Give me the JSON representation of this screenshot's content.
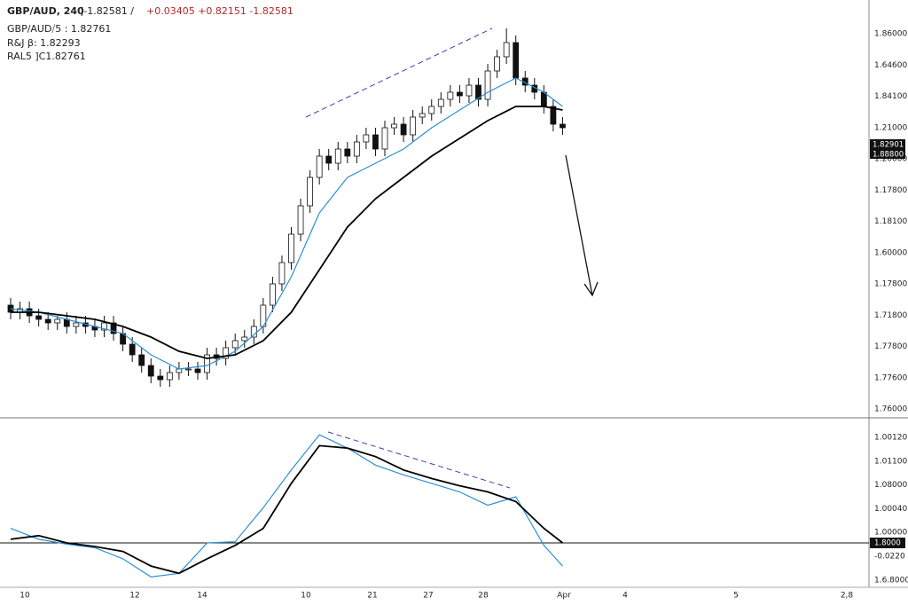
{
  "chart_data": {
    "type": "candlestick",
    "header": {
      "symbol": "GBP/AUD, 240",
      "quote": "]-1.82581 /",
      "changes": "+0.03405 +0.82151 -1.82581"
    },
    "legend_lines": [
      "GBP/AUD⧸5 : 1.82761",
      "R&J β: 1.82293",
      "RAL5 ]C1.82761"
    ],
    "up_color": "#ffffff",
    "down_color": "#111111",
    "ylim": [
      1.7525,
      1.87
    ],
    "y_axis_labels": [
      "1.86000",
      "1.64600",
      "1.84100",
      "1.21000",
      "1.20000",
      "1.17800",
      "1.18100",
      "1.60000",
      "1.17800",
      "1.71800",
      "1.77800",
      "1.77600",
      "1.76000"
    ],
    "price_badges": [
      "1.82901",
      "1.88800"
    ],
    "x_labels": [
      "10",
      "12",
      "14",
      "10",
      "21",
      "27",
      "28",
      "Apr",
      "4",
      "5",
      "2,8"
    ],
    "ohlc": [
      [
        1.784,
        1.786,
        1.78,
        1.782
      ],
      [
        1.782,
        1.785,
        1.78,
        1.783
      ],
      [
        1.783,
        1.785,
        1.779,
        1.781
      ],
      [
        1.781,
        1.783,
        1.778,
        1.78
      ],
      [
        1.78,
        1.782,
        1.777,
        1.779
      ],
      [
        1.779,
        1.781,
        1.777,
        1.78
      ],
      [
        1.78,
        1.782,
        1.776,
        1.778
      ],
      [
        1.778,
        1.781,
        1.776,
        1.779
      ],
      [
        1.779,
        1.781,
        1.776,
        1.778
      ],
      [
        1.778,
        1.78,
        1.775,
        1.777
      ],
      [
        1.777,
        1.781,
        1.775,
        1.779
      ],
      [
        1.779,
        1.781,
        1.774,
        1.776
      ],
      [
        1.776,
        1.778,
        1.771,
        1.773
      ],
      [
        1.773,
        1.775,
        1.768,
        1.77
      ],
      [
        1.77,
        1.772,
        1.765,
        1.767
      ],
      [
        1.767,
        1.769,
        1.762,
        1.764
      ],
      [
        1.764,
        1.766,
        1.761,
        1.763
      ],
      [
        1.763,
        1.767,
        1.761,
        1.765
      ],
      [
        1.765,
        1.768,
        1.763,
        1.766
      ],
      [
        1.766,
        1.768,
        1.764,
        1.766
      ],
      [
        1.766,
        1.768,
        1.763,
        1.765
      ],
      [
        1.765,
        1.772,
        1.763,
        1.77
      ],
      [
        1.77,
        1.772,
        1.767,
        1.769
      ],
      [
        1.769,
        1.774,
        1.767,
        1.772
      ],
      [
        1.772,
        1.776,
        1.77,
        1.774
      ],
      [
        1.774,
        1.777,
        1.772,
        1.775
      ],
      [
        1.775,
        1.78,
        1.773,
        1.778
      ],
      [
        1.778,
        1.786,
        1.776,
        1.784
      ],
      [
        1.784,
        1.792,
        1.782,
        1.79
      ],
      [
        1.79,
        1.798,
        1.788,
        1.796
      ],
      [
        1.796,
        1.806,
        1.794,
        1.804
      ],
      [
        1.804,
        1.814,
        1.802,
        1.812
      ],
      [
        1.812,
        1.822,
        1.81,
        1.82
      ],
      [
        1.82,
        1.828,
        1.818,
        1.826
      ],
      [
        1.826,
        1.828,
        1.822,
        1.824
      ],
      [
        1.824,
        1.83,
        1.822,
        1.828
      ],
      [
        1.828,
        1.83,
        1.824,
        1.826
      ],
      [
        1.826,
        1.832,
        1.824,
        1.83
      ],
      [
        1.83,
        1.834,
        1.828,
        1.832
      ],
      [
        1.832,
        1.834,
        1.826,
        1.828
      ],
      [
        1.828,
        1.836,
        1.826,
        1.834
      ],
      [
        1.834,
        1.837,
        1.832,
        1.835
      ],
      [
        1.835,
        1.837,
        1.83,
        1.832
      ],
      [
        1.832,
        1.839,
        1.83,
        1.837
      ],
      [
        1.837,
        1.84,
        1.835,
        1.838
      ],
      [
        1.838,
        1.842,
        1.836,
        1.84
      ],
      [
        1.84,
        1.844,
        1.838,
        1.842
      ],
      [
        1.842,
        1.846,
        1.84,
        1.844
      ],
      [
        1.844,
        1.846,
        1.841,
        1.843
      ],
      [
        1.843,
        1.848,
        1.841,
        1.846
      ],
      [
        1.846,
        1.848,
        1.84,
        1.842
      ],
      [
        1.842,
        1.852,
        1.84,
        1.85
      ],
      [
        1.85,
        1.856,
        1.848,
        1.854
      ],
      [
        1.854,
        1.862,
        1.852,
        1.858
      ],
      [
        1.858,
        1.86,
        1.846,
        1.848
      ],
      [
        1.848,
        1.85,
        1.844,
        1.846
      ],
      [
        1.846,
        1.848,
        1.842,
        1.844
      ],
      [
        1.844,
        1.846,
        1.838,
        1.84
      ],
      [
        1.84,
        1.842,
        1.833,
        1.835
      ],
      [
        1.835,
        1.837,
        1.832,
        1.834
      ]
    ],
    "ma_series": [
      {
        "color": "#2b8fd6",
        "x": [
          1,
          4,
          7,
          10,
          13,
          16,
          19,
          22,
          25,
          28,
          31,
          34,
          37,
          40,
          43,
          46,
          49,
          52,
          55,
          58,
          60
        ],
        "values": [
          1.783,
          1.782,
          1.78,
          1.778,
          1.776,
          1.77,
          1.766,
          1.767,
          1.771,
          1.778,
          1.792,
          1.81,
          1.82,
          1.824,
          1.828,
          1.834,
          1.839,
          1.844,
          1.848,
          1.844,
          1.84
        ]
      },
      {
        "color": "#000000",
        "x": [
          1,
          4,
          7,
          10,
          13,
          16,
          19,
          22,
          25,
          28,
          31,
          34,
          37,
          40,
          43,
          46,
          49,
          52,
          55,
          58,
          60
        ],
        "values": [
          1.782,
          1.782,
          1.781,
          1.78,
          1.778,
          1.775,
          1.771,
          1.769,
          1.77,
          1.774,
          1.782,
          1.794,
          1.806,
          1.814,
          1.82,
          1.826,
          1.831,
          1.836,
          1.84,
          1.84,
          1.839
        ]
      }
    ],
    "indicator": {
      "ylim": [
        -0.35,
        1
      ],
      "y_axis_labels": [
        "1.00120",
        "1.01100",
        "1.08000",
        "1.00040",
        "1.00000",
        "-0.0220",
        "1.6.8000"
      ],
      "badge": "1.8000",
      "series": [
        {
          "color": "#2b8fd6",
          "x": [
            1,
            4,
            7,
            10,
            13,
            16,
            19,
            22,
            25,
            28,
            31,
            34,
            37,
            40,
            43,
            46,
            49,
            52,
            55,
            58,
            60
          ],
          "values": [
            0.12,
            0.03,
            -0.01,
            -0.04,
            -0.13,
            -0.28,
            -0.25,
            0.0,
            0.01,
            0.29,
            0.6,
            0.89,
            0.78,
            0.64,
            0.56,
            0.49,
            0.42,
            0.31,
            0.38,
            -0.02,
            -0.19
          ]
        },
        {
          "color": "#000000",
          "x": [
            1,
            4,
            7,
            10,
            13,
            16,
            19,
            22,
            25,
            28,
            31,
            34,
            37,
            40,
            43,
            46,
            49,
            52,
            55,
            58,
            60
          ],
          "values": [
            0.03,
            0.06,
            0.0,
            -0.03,
            -0.07,
            -0.19,
            -0.25,
            -0.13,
            -0.02,
            0.12,
            0.49,
            0.8,
            0.78,
            0.71,
            0.6,
            0.53,
            0.47,
            0.42,
            0.34,
            0.12,
            0.0
          ]
        }
      ]
    }
  }
}
